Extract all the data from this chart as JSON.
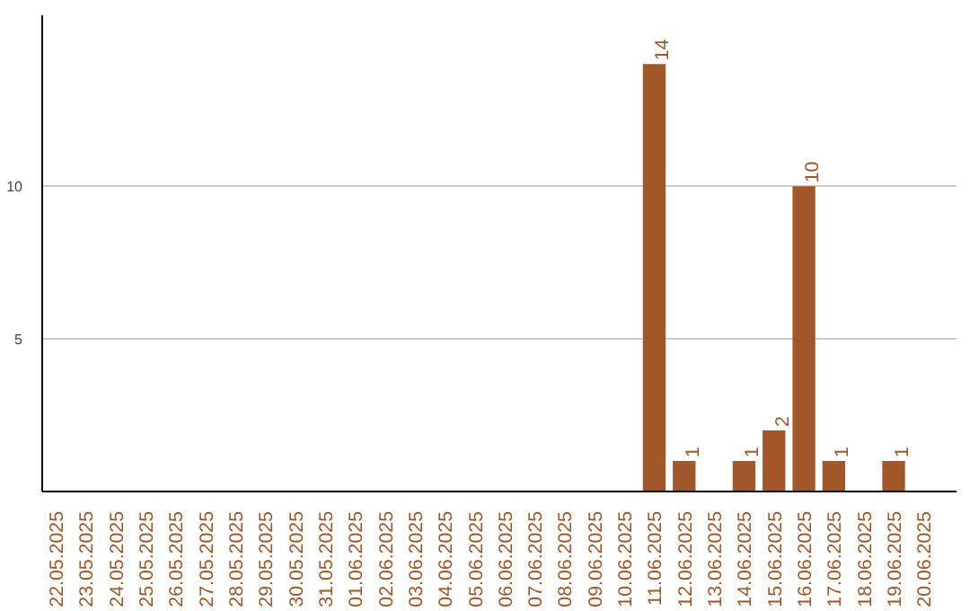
{
  "chart_data": {
    "type": "bar",
    "categories": [
      "22.05.2025",
      "23.05.2025",
      "24.05.2025",
      "25.05.2025",
      "26.05.2025",
      "27.05.2025",
      "28.05.2025",
      "29.05.2025",
      "30.05.2025",
      "31.05.2025",
      "01.06.2025",
      "02.06.2025",
      "03.06.2025",
      "04.06.2025",
      "05.06.2025",
      "06.06.2025",
      "07.06.2025",
      "08.06.2025",
      "09.06.2025",
      "10.06.2025",
      "11.06.2025",
      "12.06.2025",
      "13.06.2025",
      "14.06.2025",
      "15.06.2025",
      "16.06.2025",
      "17.06.2025",
      "18.06.2025",
      "19.06.2025",
      "20.06.2025"
    ],
    "values": [
      0,
      0,
      0,
      0,
      0,
      0,
      0,
      0,
      0,
      0,
      0,
      0,
      0,
      0,
      0,
      0,
      0,
      0,
      0,
      0,
      14,
      1,
      0,
      1,
      2,
      10,
      1,
      0,
      1,
      0
    ],
    "value_labels": [
      null,
      null,
      null,
      null,
      null,
      null,
      null,
      null,
      null,
      null,
      null,
      null,
      null,
      null,
      null,
      null,
      null,
      null,
      null,
      null,
      "14",
      "1",
      null,
      "1",
      "2",
      "10",
      "1",
      null,
      "1",
      null
    ],
    "color": "#a0582a",
    "ylim": [
      0,
      15.6
    ],
    "yticks": [
      5,
      10
    ],
    "grid": "y"
  }
}
